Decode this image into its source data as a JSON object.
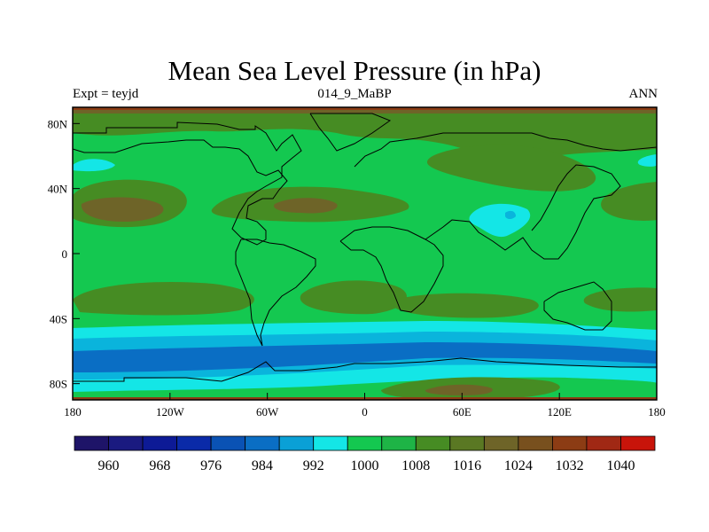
{
  "title": "Mean Sea Level Pressure (in hPa)",
  "left_label": "Expt = teyjd",
  "center_label": "014_9_MaBP",
  "right_label": "ANN",
  "lon_ticks": [
    "180",
    "120W",
    "60W",
    "0",
    "60E",
    "120E",
    "180"
  ],
  "lat_ticks": [
    "80N",
    "40N",
    "0",
    "40S",
    "80S"
  ],
  "colorbar": {
    "labels": [
      "960",
      "968",
      "976",
      "984",
      "992",
      "1000",
      "1008",
      "1016",
      "1024",
      "1032",
      "1040"
    ],
    "colors": [
      "#1e1468",
      "#1a1a80",
      "#0d1a96",
      "#0a2aa8",
      "#0a52b4",
      "#0a6ec4",
      "#0aa0d6",
      "#14e6e6",
      "#14c850",
      "#1eb446",
      "#468c23",
      "#5a7823",
      "#6e6428",
      "#78501e",
      "#8c3c14",
      "#a02814",
      "#c8140a"
    ]
  },
  "map_colors": {
    "green_1008": "#14c850",
    "dark_green_1016": "#468c23",
    "olive_1024": "#6e6428",
    "cyan_1000": "#14e6e6",
    "cyan_992": "#0ab4dc",
    "blue_984": "#0a6ec4",
    "coastline": "#000000"
  }
}
